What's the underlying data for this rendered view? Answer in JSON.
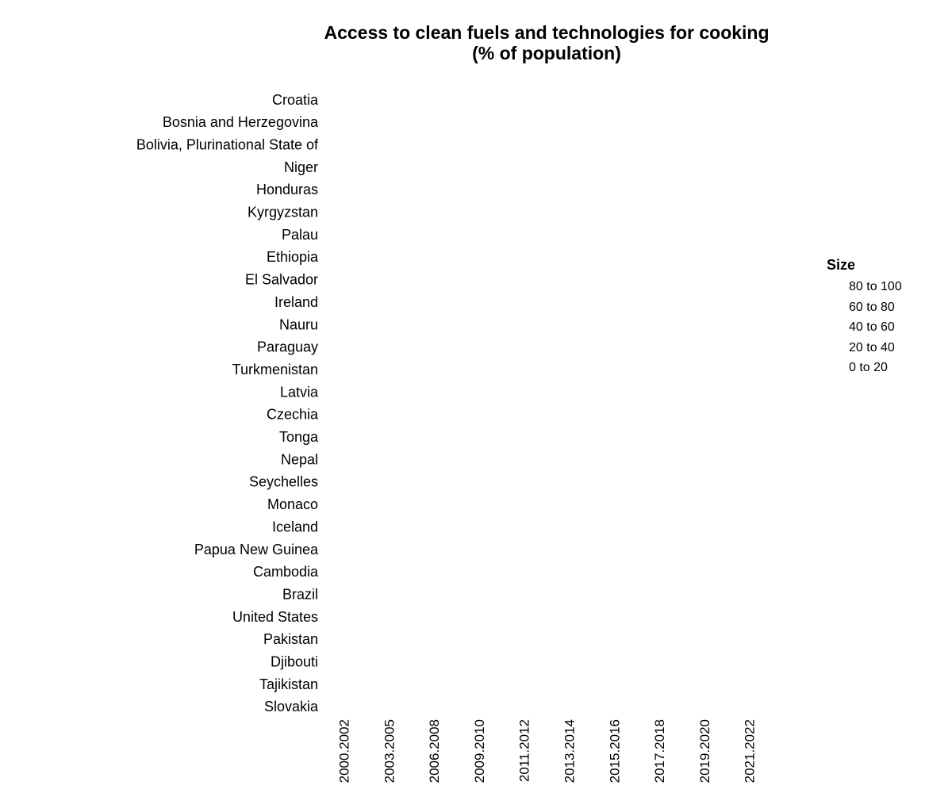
{
  "chart_data": {
    "type": "heatmap",
    "title": "Access to clean fuels and technologies for cooking",
    "subtitle": "(% of population)",
    "y_categories": [
      "Croatia",
      "Bosnia and Herzegovina",
      "Bolivia, Plurinational State of",
      "Niger",
      "Honduras",
      "Kyrgyzstan",
      "Palau",
      "Ethiopia",
      "El Salvador",
      "Ireland",
      "Nauru",
      "Paraguay",
      "Turkmenistan",
      "Latvia",
      "Czechia",
      "Tonga",
      "Nepal",
      "Seychelles",
      "Monaco",
      "Iceland",
      "Papua New Guinea",
      "Cambodia",
      "Brazil",
      "United States",
      "Pakistan",
      "Djibouti",
      "Tajikistan",
      "Slovakia"
    ],
    "x_categories": [
      "2000.2002",
      "2003.2005",
      "2006.2008",
      "2009.2010",
      "2011.2012",
      "2013.2014",
      "2015.2016",
      "2017.2018",
      "2019.2020",
      "2021.2022"
    ],
    "legend": {
      "title": "Size",
      "position": "right",
      "items": [
        "80 to 100",
        "60 to 80",
        "40 to 60",
        "20 to 40",
        "0 to 20"
      ]
    },
    "grid": false
  }
}
